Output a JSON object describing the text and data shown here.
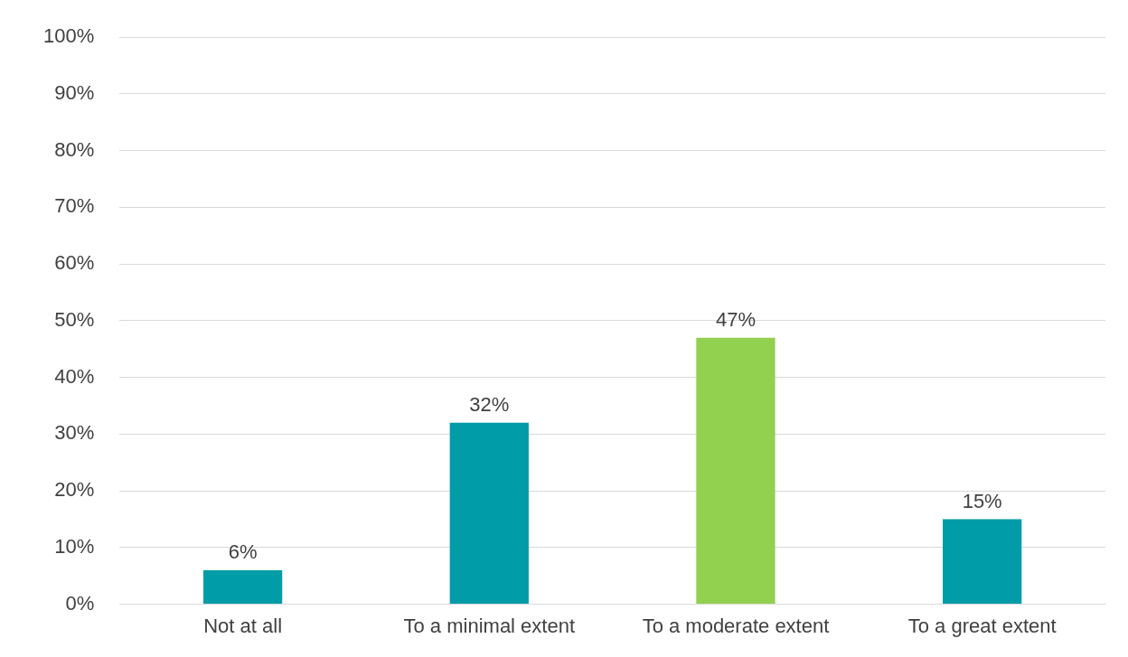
{
  "chart_data": {
    "type": "bar",
    "categories": [
      "Not at all",
      "To a minimal extent",
      "To a moderate extent",
      "To a great extent"
    ],
    "values": [
      6,
      32,
      47,
      15
    ],
    "colors": [
      "#009ca8",
      "#009ca8",
      "#92d050",
      "#009ca8"
    ],
    "ylim": [
      0,
      100
    ],
    "yticks": [
      {
        "value": 0,
        "label": "0%"
      },
      {
        "value": 10,
        "label": "10%"
      },
      {
        "value": 20,
        "label": "20%"
      },
      {
        "value": 30,
        "label": "30%"
      },
      {
        "value": 40,
        "label": "40%"
      },
      {
        "value": 50,
        "label": "50%"
      },
      {
        "value": 60,
        "label": "60%"
      },
      {
        "value": 70,
        "label": "70%"
      },
      {
        "value": 80,
        "label": "80%"
      },
      {
        "value": 90,
        "label": "90%"
      },
      {
        "value": 100,
        "label": "100%"
      }
    ],
    "value_labels": [
      "6%",
      "32%",
      "47%",
      "15%"
    ],
    "grid": "y",
    "legend": false
  }
}
